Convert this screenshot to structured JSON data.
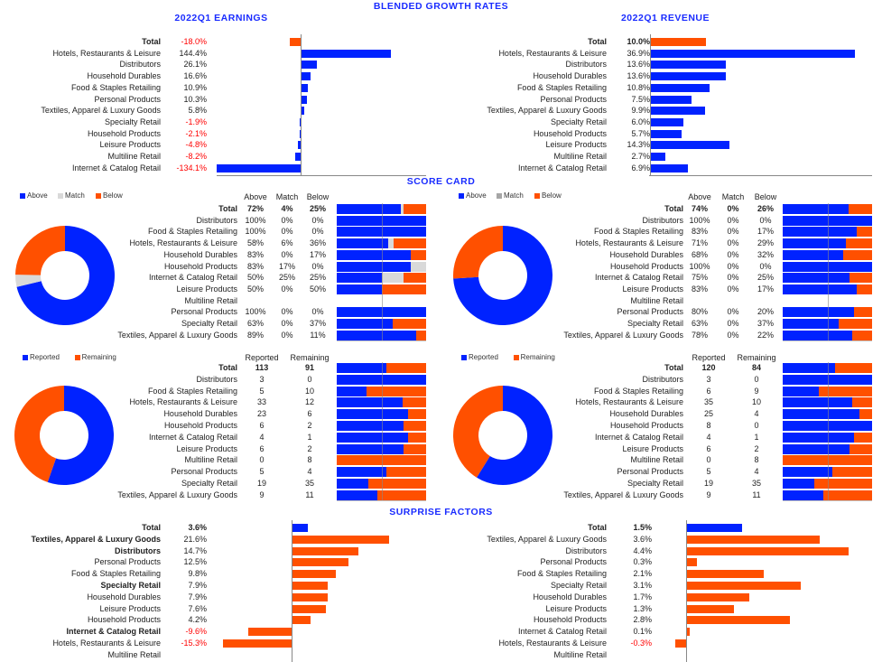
{
  "page_title": "BLENDED GROWTH RATES",
  "sections": {
    "scorecard": "SCORE CARD",
    "surprise": "SURPRISE FACTORS"
  },
  "colors": {
    "blue": "#0022ff",
    "orange": "#ff5000",
    "gray": "#d9d9d9",
    "negative_text": "#ff0000",
    "title": "#1a2cff"
  },
  "chart_data": [
    {
      "id": "earnings",
      "type": "bar",
      "orientation": "horizontal",
      "title": "2022Q1 EARNINGS",
      "categories": [
        "Total",
        "Hotels, Restaurants & Leisure",
        "Distributors",
        "Household Durables",
        "Food & Staples Retailing",
        "Personal Products",
        "Textiles, Apparel & Luxury Goods",
        "Specialty Retail",
        "Household Products",
        "Leisure Products",
        "Multiline Retail",
        "Internet & Catalog Retail"
      ],
      "values": [
        -18.0,
        144.4,
        26.1,
        16.6,
        10.9,
        10.3,
        5.8,
        -1.9,
        -2.1,
        -4.8,
        -8.2,
        -134.1
      ],
      "value_labels": [
        "-18.0%",
        "144.4%",
        "26.1%",
        "16.6%",
        "10.9%",
        "10.3%",
        "5.8%",
        "-1.9%",
        "-2.1%",
        "-4.8%",
        "-8.2%",
        "-134.1%"
      ],
      "unit": "%"
    },
    {
      "id": "revenue",
      "type": "bar",
      "orientation": "horizontal",
      "title": "2022Q1 REVENUE",
      "categories": [
        "Total",
        "Hotels, Restaurants & Leisure",
        "Distributors",
        "Household Durables",
        "Food & Staples Retailing",
        "Personal Products",
        "Textiles, Apparel & Luxury Goods",
        "Specialty Retail",
        "Household Products",
        "Leisure Products",
        "Multiline Retail",
        "Internet & Catalog Retail"
      ],
      "values": [
        10.0,
        36.9,
        13.6,
        13.6,
        10.8,
        7.5,
        9.9,
        6.0,
        5.7,
        14.3,
        2.7,
        6.9
      ],
      "value_labels": [
        "10.0%",
        "36.9%",
        "13.6%",
        "13.6%",
        "10.8%",
        "7.5%",
        "9.9%",
        "6.0%",
        "5.7%",
        "14.3%",
        "2.7%",
        "6.9%"
      ],
      "unit": "%"
    },
    {
      "id": "scorecard_earnings",
      "type": "table",
      "stacked": true,
      "legend": [
        "Above",
        "Match",
        "Below"
      ],
      "headers": [
        "Above",
        "Match",
        "Below"
      ],
      "categories": [
        "Total",
        "Distributors",
        "Food & Staples Retailing",
        "Hotels, Restaurants & Leisure",
        "Household Durables",
        "Household Products",
        "Internet & Catalog Retail",
        "Leisure Products",
        "Multiline Retail",
        "Personal Products",
        "Specialty Retail",
        "Textiles, Apparel & Luxury Goods"
      ],
      "above": [
        72,
        100,
        100,
        58,
        83,
        83,
        50,
        50,
        null,
        100,
        63,
        89
      ],
      "match": [
        4,
        0,
        0,
        6,
        0,
        17,
        25,
        0,
        null,
        0,
        0,
        0
      ],
      "below": [
        25,
        0,
        0,
        36,
        17,
        0,
        25,
        50,
        null,
        0,
        37,
        11
      ],
      "labels": [
        [
          "72%",
          "4%",
          "25%"
        ],
        [
          "100%",
          "0%",
          "0%"
        ],
        [
          "100%",
          "0%",
          "0%"
        ],
        [
          "58%",
          "6%",
          "36%"
        ],
        [
          "83%",
          "0%",
          "17%"
        ],
        [
          "83%",
          "17%",
          "0%"
        ],
        [
          "50%",
          "25%",
          "25%"
        ],
        [
          "50%",
          "0%",
          "50%"
        ],
        [
          "",
          "",
          ""
        ],
        [
          "100%",
          "0%",
          "0%"
        ],
        [
          "63%",
          "0%",
          "37%"
        ],
        [
          "89%",
          "0%",
          "11%"
        ]
      ]
    },
    {
      "id": "scorecard_revenue",
      "type": "table",
      "stacked": true,
      "legend": [
        "Above",
        "Match",
        "Below"
      ],
      "headers": [
        "Above",
        "Match",
        "Below"
      ],
      "categories": [
        "Total",
        "Distributors",
        "Food & Staples Retailing",
        "Hotels, Restaurants & Leisure",
        "Household Durables",
        "Household Products",
        "Internet & Catalog Retail",
        "Leisure Products",
        "Multiline Retail",
        "Personal Products",
        "Specialty Retail",
        "Textiles, Apparel & Luxury Goods"
      ],
      "above": [
        74,
        100,
        83,
        71,
        68,
        100,
        75,
        83,
        null,
        80,
        63,
        78
      ],
      "match": [
        0,
        0,
        0,
        0,
        0,
        0,
        0,
        0,
        null,
        0,
        0,
        0
      ],
      "below": [
        26,
        0,
        17,
        29,
        32,
        0,
        25,
        17,
        null,
        20,
        37,
        22
      ],
      "labels": [
        [
          "74%",
          "0%",
          "26%"
        ],
        [
          "100%",
          "0%",
          "0%"
        ],
        [
          "83%",
          "0%",
          "17%"
        ],
        [
          "71%",
          "0%",
          "29%"
        ],
        [
          "68%",
          "0%",
          "32%"
        ],
        [
          "100%",
          "0%",
          "0%"
        ],
        [
          "75%",
          "0%",
          "25%"
        ],
        [
          "83%",
          "0%",
          "17%"
        ],
        [
          "",
          "",
          ""
        ],
        [
          "80%",
          "0%",
          "20%"
        ],
        [
          "63%",
          "0%",
          "37%"
        ],
        [
          "78%",
          "0%",
          "22%"
        ]
      ]
    },
    {
      "id": "reported_earnings",
      "type": "table",
      "stacked": true,
      "legend": [
        "Reported",
        "Remaining"
      ],
      "headers": [
        "Reported",
        "Remaining"
      ],
      "categories": [
        "Total",
        "Distributors",
        "Food & Staples Retailing",
        "Hotels, Restaurants & Leisure",
        "Household Durables",
        "Household Products",
        "Internet & Catalog Retail",
        "Leisure Products",
        "Multiline Retail",
        "Personal Products",
        "Specialty Retail",
        "Textiles, Apparel & Luxury Goods"
      ],
      "reported": [
        113,
        3,
        5,
        33,
        23,
        6,
        4,
        6,
        0,
        5,
        19,
        9
      ],
      "remaining": [
        91,
        0,
        10,
        12,
        6,
        2,
        1,
        2,
        8,
        4,
        35,
        11
      ]
    },
    {
      "id": "reported_revenue",
      "type": "table",
      "stacked": true,
      "legend": [
        "Reported",
        "Remaining"
      ],
      "headers": [
        "Reported",
        "Remaining"
      ],
      "categories": [
        "Total",
        "Distributors",
        "Food & Staples Retailing",
        "Hotels, Restaurants & Leisure",
        "Household Durables",
        "Household Products",
        "Internet & Catalog Retail",
        "Leisure Products",
        "Multiline Retail",
        "Personal Products",
        "Specialty Retail",
        "Textiles, Apparel & Luxury Goods"
      ],
      "reported": [
        120,
        3,
        6,
        35,
        25,
        8,
        4,
        6,
        0,
        5,
        19,
        9
      ],
      "remaining": [
        84,
        0,
        9,
        10,
        4,
        0,
        1,
        2,
        8,
        4,
        35,
        11
      ]
    },
    {
      "id": "surprise_earnings",
      "type": "bar",
      "orientation": "horizontal",
      "categories": [
        "Total",
        "Textiles, Apparel & Luxury Goods",
        "Distributors",
        "Personal Products",
        "Food & Staples Retailing",
        "Specialty Retail",
        "Household Durables",
        "Leisure Products",
        "Household Products",
        "Internet & Catalog Retail",
        "Hotels, Restaurants & Leisure",
        "Multiline Retail"
      ],
      "values": [
        3.6,
        21.6,
        14.7,
        12.5,
        9.8,
        7.9,
        7.9,
        7.6,
        4.2,
        -9.6,
        -15.3,
        null
      ],
      "value_labels": [
        "3.6%",
        "21.6%",
        "14.7%",
        "12.5%",
        "9.8%",
        "7.9%",
        "7.9%",
        "7.6%",
        "4.2%",
        "-9.6%",
        "-15.3%",
        ""
      ],
      "unit": "%"
    },
    {
      "id": "surprise_revenue",
      "type": "bar",
      "orientation": "horizontal",
      "categories": [
        "Total",
        "Textiles, Apparel & Luxury Goods",
        "Distributors",
        "Personal Products",
        "Food & Staples Retailing",
        "Specialty Retail",
        "Household Durables",
        "Leisure Products",
        "Household Products",
        "Internet & Catalog Retail",
        "Hotels, Restaurants & Leisure",
        "Multiline Retail"
      ],
      "values": [
        1.5,
        3.6,
        4.4,
        0.3,
        2.1,
        3.1,
        1.7,
        1.3,
        2.8,
        0.1,
        -0.3,
        null
      ],
      "value_labels": [
        "1.5%",
        "3.6%",
        "4.4%",
        "0.3%",
        "2.1%",
        "3.1%",
        "1.7%",
        "1.3%",
        "2.8%",
        "0.1%",
        "-0.3%",
        ""
      ],
      "unit": "%"
    }
  ]
}
